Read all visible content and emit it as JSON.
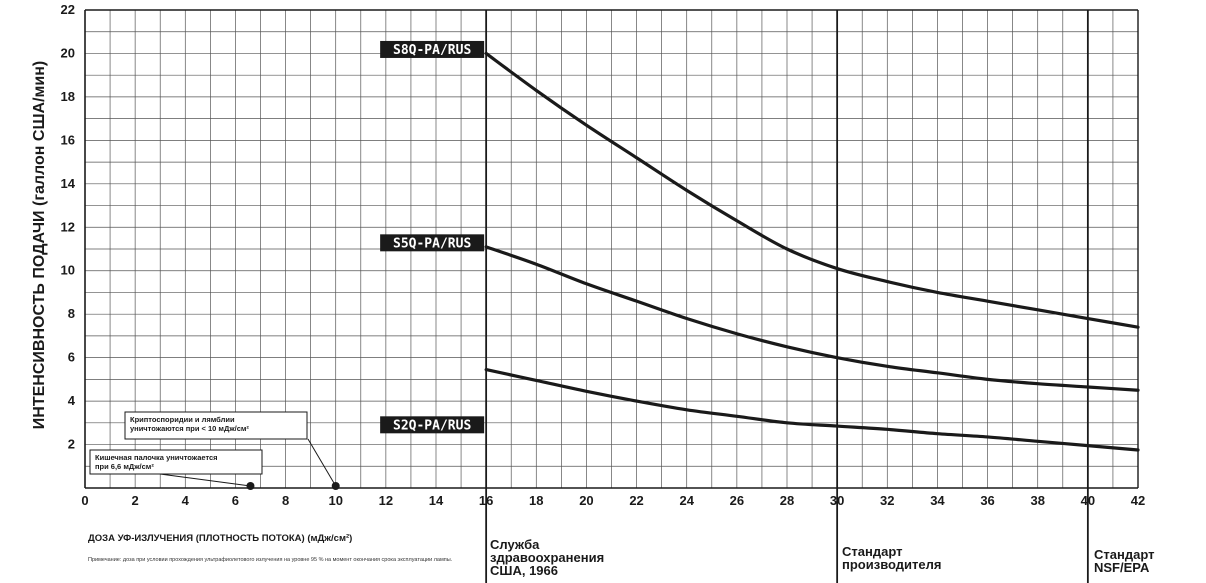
{
  "chart_data": {
    "type": "line",
    "ylabel": "ИНТЕНСИВНОСТЬ ПОДАЧИ (галлон США/мин)",
    "xlabel": "ДОЗА УФ-ИЗЛУЧЕНИЯ (ПЛОТНОСТЬ ПОТОКА) (мДж/см²)",
    "note": "Примечание: доза при условии прохождения ультрафиолетового излучения на уровне 95 % на момент окончания срока эксплуатации лампы.",
    "xlim": [
      0,
      42
    ],
    "ylim": [
      0,
      22
    ],
    "x_ticks": [
      "0",
      "2",
      "4",
      "6",
      "8",
      "10",
      "12",
      "14",
      "16",
      "18",
      "20",
      "22",
      "24",
      "26",
      "28",
      "30",
      "32",
      "34",
      "36",
      "38",
      "40",
      "42"
    ],
    "y_ticks": [
      "2",
      "4",
      "6",
      "8",
      "10",
      "12",
      "14",
      "16",
      "18",
      "20",
      "22"
    ],
    "grid": true,
    "series": [
      {
        "name": "S8Q-PA/RUS",
        "x": [
          16,
          18,
          20,
          22,
          24,
          26,
          28,
          30,
          32,
          34,
          36,
          38,
          40,
          42
        ],
        "y": [
          20.0,
          18.3,
          16.7,
          15.2,
          13.7,
          12.3,
          11.0,
          10.1,
          9.5,
          9.0,
          8.6,
          8.2,
          7.8,
          7.4
        ]
      },
      {
        "name": "S5Q-PA/RUS",
        "x": [
          16,
          18,
          20,
          22,
          24,
          26,
          28,
          30,
          32,
          34,
          36,
          38,
          40,
          42
        ],
        "y": [
          11.1,
          10.3,
          9.4,
          8.6,
          7.8,
          7.1,
          6.5,
          6.0,
          5.6,
          5.3,
          5.0,
          4.8,
          4.65,
          4.5
        ]
      },
      {
        "name": "S2Q-PA/RUS",
        "x": [
          16,
          18,
          20,
          22,
          24,
          26,
          28,
          30,
          32,
          34,
          36,
          38,
          40,
          42
        ],
        "y": [
          5.45,
          4.95,
          4.45,
          4.0,
          3.6,
          3.3,
          3.0,
          2.85,
          2.7,
          2.5,
          2.35,
          2.15,
          1.95,
          1.75
        ]
      }
    ],
    "standards": [
      {
        "x": 16,
        "label": "Служба\nздравоохранения\nСША, 1966"
      },
      {
        "x": 30,
        "label": "Стандарт\nпроизводителя"
      },
      {
        "x": 40,
        "label": "Стандарт\nNSF/EPA"
      }
    ],
    "annotations": [
      {
        "x": 10,
        "text": [
          "Криптоспоридии и лямблии",
          "уничтожаются при < 10 мДж/см²"
        ]
      },
      {
        "x": 6.6,
        "text": [
          "Кишечная палочка уничтожается",
          "при 6,6 мДж/см²"
        ]
      }
    ]
  }
}
